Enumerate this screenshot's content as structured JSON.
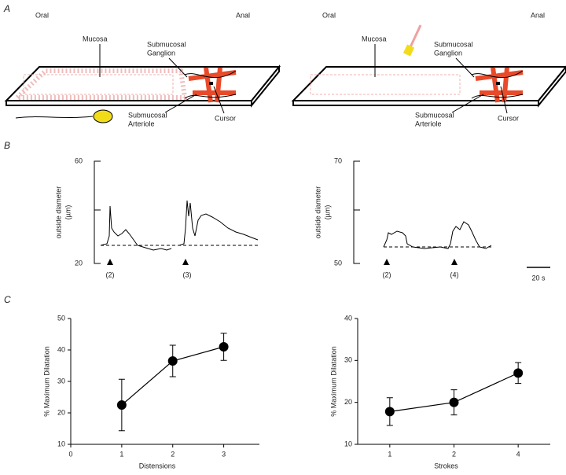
{
  "panel_a": {
    "label": "A",
    "left": {
      "oral": "Oral",
      "anal": "Anal",
      "mucosa": "Mucosa",
      "ganglion": [
        "Submucosal",
        "Ganglion"
      ],
      "arteriole": [
        "Submucosal",
        "Arteriole"
      ],
      "cursor": "Cursor"
    },
    "right": {
      "oral": "Oral",
      "anal": "Anal",
      "mucosa": "Mucosa",
      "ganglion": [
        "Submucosal",
        "Ganglion"
      ],
      "arteriole": [
        "Submucosal",
        "Arteriole"
      ],
      "cursor": "Cursor"
    }
  },
  "panel_b": {
    "label": "B",
    "y_label": [
      "outside diameter",
      "(µm)"
    ],
    "left": {
      "y_top": 60,
      "y_bottom": 20,
      "markers": [
        "(2)",
        "(3)"
      ]
    },
    "right": {
      "y_top": 70,
      "y_bottom": 50,
      "markers": [
        "(2)",
        "(4)"
      ]
    },
    "scale_bar": "20 s"
  },
  "panel_c": {
    "label": "C"
  },
  "chart_data": [
    {
      "type": "line",
      "x_label": "Distensions",
      "y_label": "% Maximum Dilatation",
      "x": [
        1,
        2,
        3
      ],
      "values": [
        22.5,
        36.5,
        41
      ],
      "errors": [
        8.2,
        5,
        4.3
      ],
      "color": "#000000",
      "xlim": [
        0,
        3.7
      ],
      "xticks": [
        0,
        1,
        2,
        3
      ],
      "ylim": [
        10,
        50
      ],
      "yticks": [
        10,
        20,
        30,
        40,
        50
      ]
    },
    {
      "type": "line",
      "x_label": "Strokes",
      "y_label": "% Maximum Dilatation",
      "categories": [
        "1",
        "2",
        "4"
      ],
      "values": [
        17.8,
        20,
        27
      ],
      "errors": [
        3.3,
        3,
        2.5
      ],
      "color": "#000000",
      "ylim": [
        10,
        40
      ],
      "yticks": [
        10,
        20,
        30,
        40
      ]
    }
  ]
}
